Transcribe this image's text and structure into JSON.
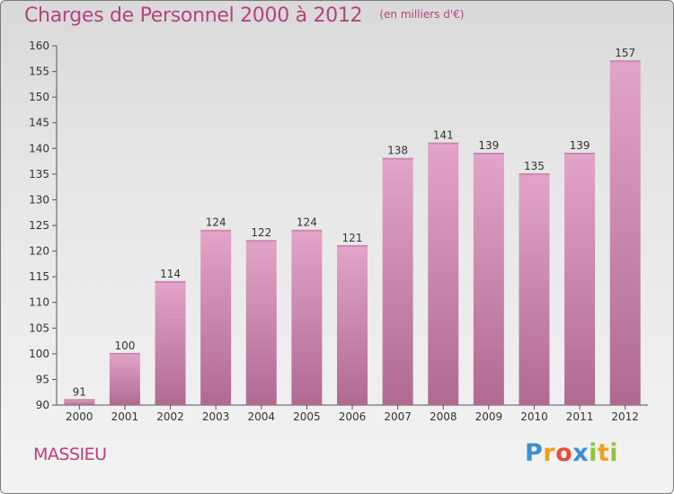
{
  "chart_data": {
    "type": "bar",
    "title": "Charges de Personnel 2000 à 2012",
    "subtitle": "(en milliers d'€)",
    "categories": [
      "2000",
      "2001",
      "2002",
      "2003",
      "2004",
      "2005",
      "2006",
      "2007",
      "2008",
      "2009",
      "2010",
      "2011",
      "2012"
    ],
    "values": [
      91,
      100,
      114,
      124,
      122,
      124,
      121,
      138,
      141,
      139,
      135,
      139,
      157
    ],
    "data_labels": [
      "91",
      "100",
      "114",
      "124",
      "122",
      "124",
      "121",
      "138",
      "141",
      "139",
      "135",
      "139",
      "157"
    ],
    "ylim": [
      90,
      160
    ],
    "yticks": [
      90,
      95,
      100,
      105,
      110,
      115,
      120,
      125,
      130,
      135,
      140,
      145,
      150,
      155,
      160
    ],
    "ytick_labels": [
      "90",
      "95",
      "100",
      "105",
      "110",
      "115",
      "120",
      "125",
      "130",
      "135",
      "140",
      "145",
      "150",
      "155",
      "160"
    ],
    "xlabel": "",
    "ylabel": "",
    "grid": false,
    "bar_color_top": "#e2a4c8",
    "bar_color_bottom": "#b06a92",
    "title_color": "#b8427d"
  },
  "commune": "MASSIEU",
  "logo": {
    "letters": [
      "P",
      "r",
      "o",
      "x",
      "i",
      "t",
      "i"
    ],
    "colors": [
      "#3a8fd0",
      "#f0a020",
      "#e84c3d",
      "#3a8fd0",
      "#8cc63f",
      "#f0a020",
      "#8cc63f"
    ]
  }
}
